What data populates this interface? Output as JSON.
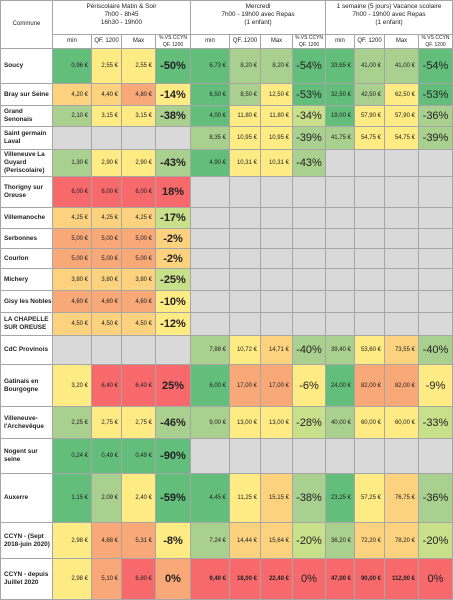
{
  "column_headers": {
    "commune": "Commune",
    "periscolaire": {
      "title": "Périscolaire Matin & Soir",
      "line2": "7h00 - 8h45",
      "line3": "16h30 - 19h00"
    },
    "mercredi": {
      "title": "Mercredi",
      "line2": "7h00 - 19h00 avec Repas",
      "line3": "(1 enfant)"
    },
    "vacances": {
      "title": "1 semaine (5 jours) Vacance scolaire",
      "line2": "7h00 - 19h00 avec Repas",
      "line3": "(1 enfant)"
    },
    "min": "min",
    "qf": "QF. 1200",
    "max": "Max",
    "pct_peri": "% VS CCYN QF. 1200",
    "pct_other": "% VS CCYN QF. 1200"
  },
  "chart_data": {
    "type": "table",
    "columns": [
      "Commune",
      "Périscolaire min",
      "Périscolaire QF. 1200",
      "Périscolaire Max",
      "Périscolaire % VS CCYN QF. 1200",
      "Mercredi min",
      "Mercredi QF. 1200",
      "Mercredi Max",
      "Mercredi % VS CCYN QF. 1200",
      "Vacances min",
      "Vacances QF. 1200",
      "Vacances Max",
      "Vacances % VS CCYN QF. 1200"
    ],
    "rows": [
      {
        "commune": "Soucy",
        "p": [
          "0,96 €",
          "2,55 €",
          "2,55 €",
          "-50%"
        ],
        "m": [
          "6,73 €",
          "8,20 €",
          "8,20 €",
          "-54%"
        ],
        "v": [
          "33,65 €",
          "41,00 €",
          "41,00 €",
          "-54%"
        ]
      },
      {
        "commune": "Bray sur Seine",
        "p": [
          "4,20 €",
          "4,40 €",
          "4,80 €",
          "-14%"
        ],
        "m": [
          "6,50 €",
          "8,50 €",
          "12,50 €",
          "-53%"
        ],
        "v": [
          "32,50 €",
          "42,50 €",
          "62,50 €",
          "-53%"
        ]
      },
      {
        "commune": "Grand Senonais",
        "p": [
          "2,10 €",
          "3,15 €",
          "3,15 €",
          "-38%"
        ],
        "m": [
          "4,00 €",
          "11,80 €",
          "11,80 €",
          "-34%"
        ],
        "v": [
          "19,00 €",
          "57,90 €",
          "57,90 €",
          "-36%"
        ]
      },
      {
        "commune": "Saint germain Laval",
        "p": [
          "",
          "",
          "",
          ""
        ],
        "m": [
          "8,35 €",
          "10,95 €",
          "10,95 €",
          "-39%"
        ],
        "v": [
          "41,75 €",
          "54,75 €",
          "54,75 €",
          "-39%"
        ]
      },
      {
        "commune": "Villeneuve La Guyard (Periscolaire)",
        "p": [
          "1,30 €",
          "2,90 €",
          "2,90 €",
          "-43%"
        ],
        "m": [
          "4,90 €",
          "10,31 €",
          "10,31 €",
          "-43%"
        ],
        "v": [
          "",
          "",
          "",
          ""
        ]
      },
      {
        "commune": "Thorigny sur Oreuse",
        "p": [
          "6,00 €",
          "6,00 €",
          "6,00 €",
          "18%"
        ],
        "m": [
          "",
          "",
          "",
          ""
        ],
        "v": [
          "",
          "",
          "",
          ""
        ]
      },
      {
        "commune": "Villemanoche",
        "p": [
          "4,25 €",
          "4,25 €",
          "4,25 €",
          "-17%"
        ],
        "m": [
          "",
          "",
          "",
          ""
        ],
        "v": [
          "",
          "",
          "",
          ""
        ]
      },
      {
        "commune": "Serbonnes",
        "p": [
          "5,00 €",
          "5,00 €",
          "5,00 €",
          "-2%"
        ],
        "m": [
          "",
          "",
          "",
          ""
        ],
        "v": [
          "",
          "",
          "",
          ""
        ]
      },
      {
        "commune": "Courlon",
        "p": [
          "5,00 €",
          "5,00 €",
          "5,00 €",
          "-2%"
        ],
        "m": [
          "",
          "",
          "",
          ""
        ],
        "v": [
          "",
          "",
          "",
          ""
        ]
      },
      {
        "commune": "Michery",
        "p": [
          "3,80 €",
          "3,80 €",
          "3,80 €",
          "-25%"
        ],
        "m": [
          "",
          "",
          "",
          ""
        ],
        "v": [
          "",
          "",
          "",
          ""
        ]
      },
      {
        "commune": "Gisy les Nobles",
        "p": [
          "4,60 €",
          "4,60 €",
          "4,60 €",
          "-10%"
        ],
        "m": [
          "",
          "",
          "",
          ""
        ],
        "v": [
          "",
          "",
          "",
          ""
        ]
      },
      {
        "commune": "LA CHAPELLE SUR OREUSE",
        "p": [
          "4,50 €",
          "4,50 €",
          "4,50 €",
          "-12%"
        ],
        "m": [
          "",
          "",
          "",
          ""
        ],
        "v": [
          "",
          "",
          "",
          ""
        ]
      },
      {
        "commune": "CdC Provinois",
        "p": [
          "",
          "",
          "",
          ""
        ],
        "m": [
          "7,88 €",
          "10,72 €",
          "14,71 €",
          "-40%"
        ],
        "v": [
          "39,40 €",
          "53,60 €",
          "73,55 €",
          "-40%"
        ]
      },
      {
        "commune": "Gatinais en Bourgogne",
        "p": [
          "3,20 €",
          "6,40 €",
          "6,40 €",
          "25%"
        ],
        "m": [
          "6,00 €",
          "17,00 €",
          "17,00 €",
          "-6%"
        ],
        "v": [
          "24,00 €",
          "82,00 €",
          "82,00 €",
          "-9%"
        ]
      },
      {
        "commune": "Villeneuve-l'Archevêque",
        "p": [
          "2,25 €",
          "2,75 €",
          "2,75 €",
          "-46%"
        ],
        "m": [
          "9,00 €",
          "13,00 €",
          "13,00 €",
          "-28%"
        ],
        "v": [
          "40,00 €",
          "60,00 €",
          "60,00 €",
          "-33%"
        ]
      },
      {
        "commune": "Nogent sur seine",
        "p": [
          "0,24 €",
          "0,49 €",
          "0,49 €",
          "-90%"
        ],
        "m": [
          "",
          "",
          "",
          ""
        ],
        "v": [
          "",
          "",
          "",
          ""
        ]
      },
      {
        "commune": "Auxerre",
        "p": [
          "1,15 €",
          "2,09 €",
          "2,40 €",
          "-59%"
        ],
        "m": [
          "4,45 €",
          "11,25 €",
          "15,15 €",
          "-38%"
        ],
        "v": [
          "23,25 €",
          "57,25 €",
          "76,75 €",
          "-36%"
        ]
      },
      {
        "commune": "CCYN - (Sept 2018-juin 2020)",
        "p": [
          "2,98 €",
          "4,68 €",
          "5,31 €",
          "-8%"
        ],
        "m": [
          "7,24 €",
          "14,44 €",
          "15,64 €",
          "-20%"
        ],
        "v": [
          "36,20 €",
          "72,20 €",
          "78,20 €",
          "-20%"
        ]
      },
      {
        "commune": "CCYN - depuis Juillet 2020",
        "p": [
          "2,98 €",
          "5,10 €",
          "6,80 €",
          "0%"
        ],
        "m": [
          "9,40 €",
          "18,00 €",
          "22,40 €",
          "0%"
        ],
        "v": [
          "47,00 €",
          "90,00 €",
          "112,00 €",
          "0%"
        ]
      }
    ],
    "cell_colors": {
      "green": "#63be7b",
      "lightgreen": "#a9d08e",
      "yellowgreen": "#c9e08b",
      "yellow": "#ffeb84",
      "lightorange": "#fcd27f",
      "orange": "#f8a977",
      "red": "#f8696b",
      "grey": "#d9d9d9",
      "white": "#ffffff"
    }
  }
}
